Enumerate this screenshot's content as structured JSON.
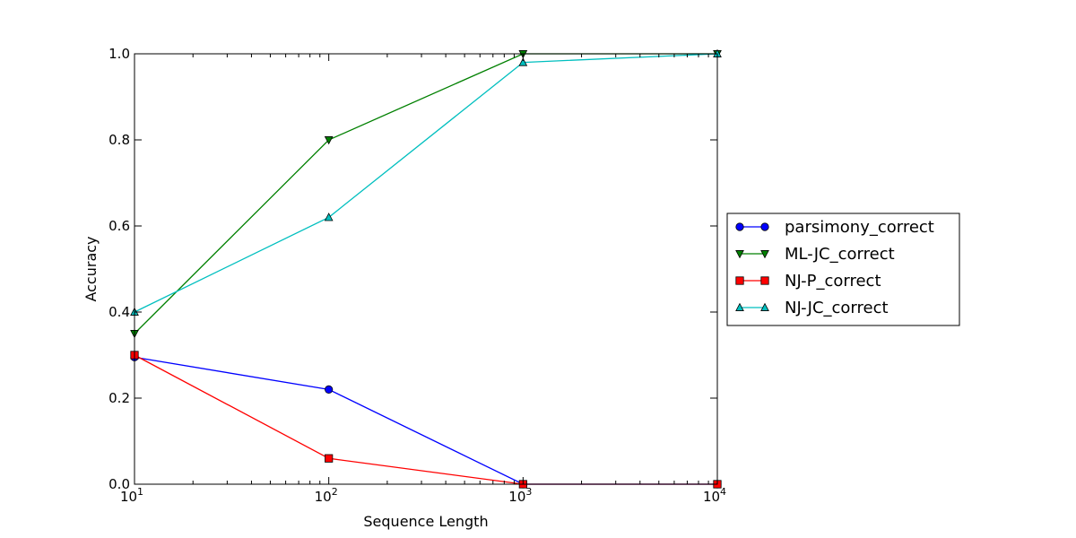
{
  "chart_data": {
    "type": "line",
    "x_scale": "log",
    "xlabel": "Sequence Length",
    "ylabel": "Accuracy",
    "xlim": [
      10,
      10000
    ],
    "ylim": [
      0.0,
      1.0
    ],
    "grid": false,
    "legend_position": "right, outside plot",
    "x_ticks": [
      {
        "value": 10,
        "base": "10",
        "exp": "1"
      },
      {
        "value": 100,
        "base": "10",
        "exp": "2"
      },
      {
        "value": 1000,
        "base": "10",
        "exp": "3"
      },
      {
        "value": 10000,
        "base": "10",
        "exp": "4"
      }
    ],
    "y_ticks": [
      {
        "value": 0.0,
        "label": "0.0"
      },
      {
        "value": 0.2,
        "label": "0.2"
      },
      {
        "value": 0.4,
        "label": "0.4"
      },
      {
        "value": 0.6,
        "label": "0.6"
      },
      {
        "value": 0.8,
        "label": "0.8"
      },
      {
        "value": 1.0,
        "label": "1.0"
      }
    ],
    "x": [
      10,
      100,
      1000,
      10000
    ],
    "series": [
      {
        "name": "parsimony_correct",
        "values": [
          0.295,
          0.22,
          0.0,
          0.0
        ],
        "color": "#0000ff",
        "marker": "circle"
      },
      {
        "name": "ML-JC_correct",
        "values": [
          0.35,
          0.8,
          1.0,
          1.0
        ],
        "color": "#008000",
        "marker": "triangle-down"
      },
      {
        "name": "NJ-P_correct",
        "values": [
          0.3,
          0.06,
          0.0,
          0.0
        ],
        "color": "#ff0000",
        "marker": "square"
      },
      {
        "name": "NJ-JC_correct",
        "values": [
          0.4,
          0.62,
          0.98,
          1.0
        ],
        "color": "#00bfbf",
        "marker": "triangle-up"
      }
    ]
  }
}
